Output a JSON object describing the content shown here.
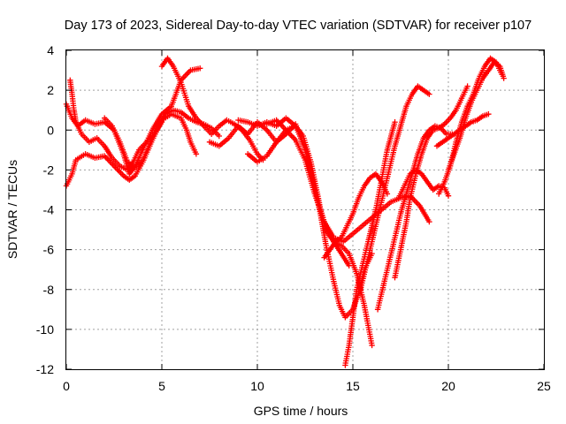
{
  "chart_data": {
    "type": "scatter",
    "title": "Day 173 of 2023, Sidereal Day-to-day VTEC variation (SDTVAR) for receiver p107",
    "xlabel": "GPS time / hours",
    "ylabel": "SDTVAR / TECUs",
    "xlim": [
      0,
      25
    ],
    "ylim": [
      -12,
      4
    ],
    "xticks": [
      "0",
      "5",
      "10",
      "15",
      "20",
      "25"
    ],
    "yticks": [
      "4",
      "2",
      "0",
      "-2",
      "-4",
      "-6",
      "-8",
      "-10",
      "-12"
    ],
    "grid": true,
    "marker": "+",
    "color": "#ff0000",
    "series": [
      {
        "x": [
          0.0,
          0.3,
          0.6,
          1.0,
          1.5,
          2.0,
          2.5,
          3.0,
          3.3,
          3.6,
          4.0,
          4.5,
          5.0,
          5.5,
          6.0,
          6.5,
          7.0
        ],
        "y": [
          1.3,
          0.6,
          0.2,
          0.5,
          0.3,
          0.4,
          0.0,
          -1.2,
          -2.2,
          -1.8,
          -1.0,
          0.0,
          0.8,
          1.2,
          2.5,
          3.0,
          3.1
        ]
      },
      {
        "x": [
          0.0,
          0.3,
          0.5,
          1.0,
          1.5,
          2.0,
          2.5,
          3.0,
          3.3,
          3.6,
          4.0,
          4.5,
          5.0,
          5.5,
          6.0,
          6.3,
          6.5,
          6.8
        ],
        "y": [
          -2.8,
          -2.2,
          -1.5,
          -1.2,
          -1.4,
          -1.3,
          -1.8,
          -2.3,
          -2.5,
          -2.3,
          -1.6,
          -0.5,
          0.5,
          0.8,
          0.6,
          0.0,
          -0.6,
          -1.2
        ]
      },
      {
        "x": [
          0.2,
          0.3,
          0.4,
          0.5,
          0.8,
          1.2,
          1.6,
          2.0,
          2.4,
          2.8,
          3.2,
          3.5,
          3.8,
          4.2,
          4.6,
          5.0
        ],
        "y": [
          2.5,
          1.8,
          1.0,
          0.4,
          -0.2,
          -0.6,
          -0.4,
          -0.8,
          -1.4,
          -1.8,
          -2.0,
          -1.6,
          -1.0,
          -0.6,
          -0.2,
          0.4
        ]
      },
      {
        "x": [
          2.0,
          2.4,
          2.8,
          3.2,
          3.6,
          4.0,
          4.4,
          4.8,
          5.2,
          5.6,
          6.0,
          6.4,
          6.8,
          7.2,
          7.6,
          8.0
        ],
        "y": [
          0.6,
          0.2,
          -0.6,
          -1.6,
          -1.9,
          -1.5,
          -0.6,
          0.2,
          0.8,
          1.0,
          0.9,
          0.6,
          0.4,
          0.3,
          0.1,
          -0.3
        ]
      },
      {
        "x": [
          5.0,
          5.3,
          5.6,
          6.0,
          6.4,
          6.8,
          7.2,
          7.6,
          8.0,
          8.4,
          8.8,
          9.2,
          9.6,
          10.0,
          10.3
        ],
        "y": [
          3.2,
          3.6,
          3.2,
          2.4,
          1.2,
          0.6,
          0.2,
          -0.2,
          0.2,
          0.5,
          0.3,
          0.0,
          -0.5,
          -1.2,
          -1.5
        ]
      },
      {
        "x": [
          7.5,
          8.0,
          8.5,
          9.0,
          9.5,
          10.0,
          10.5,
          11.0,
          11.5,
          12.0,
          12.5,
          13.0,
          13.5,
          14.0,
          14.4,
          14.8
        ],
        "y": [
          -0.6,
          -0.8,
          -0.4,
          0.2,
          -0.2,
          0.4,
          0.0,
          -0.6,
          -0.2,
          0.3,
          -1.0,
          -3.0,
          -4.6,
          -5.6,
          -6.2,
          -6.8
        ]
      },
      {
        "x": [
          9.0,
          9.5,
          10.0,
          10.5,
          11.0,
          11.5,
          12.0,
          12.3,
          12.6,
          13.0,
          13.3,
          13.6,
          14.0,
          14.3,
          14.6,
          15.0,
          15.3,
          15.6,
          16.0
        ],
        "y": [
          0.5,
          0.4,
          0.2,
          0.4,
          0.2,
          0.6,
          0.2,
          -0.4,
          -1.2,
          -2.8,
          -4.2,
          -5.8,
          -7.6,
          -8.8,
          -9.4,
          -9.0,
          -8.2,
          -7.0,
          -6.2
        ]
      },
      {
        "x": [
          9.5,
          10.0,
          10.5,
          11.0,
          11.5,
          12.0,
          12.4,
          12.8,
          13.1,
          13.4,
          13.7,
          14.0,
          14.4,
          14.8,
          15.2,
          15.6,
          16.0
        ],
        "y": [
          -1.2,
          -1.6,
          -1.3,
          -0.6,
          0.0,
          0.2,
          -0.3,
          -1.6,
          -3.0,
          -4.4,
          -5.2,
          -5.6,
          -5.8,
          -6.2,
          -7.2,
          -8.8,
          -10.8
        ]
      },
      {
        "x": [
          10.5,
          11.0,
          11.5,
          12.0,
          12.5,
          13.0,
          13.5,
          14.0,
          14.5,
          15.0,
          15.5,
          16.0,
          16.5,
          17.0,
          17.5,
          18.0,
          18.5,
          19.0
        ],
        "y": [
          0.3,
          0.5,
          0.0,
          -0.5,
          -1.5,
          -3.2,
          -4.6,
          -5.4,
          -5.6,
          -5.2,
          -4.8,
          -4.4,
          -4.0,
          -3.6,
          -3.4,
          -3.3,
          -3.8,
          -4.6
        ]
      },
      {
        "x": [
          13.5,
          13.8,
          14.1,
          14.4,
          14.7,
          15.0,
          15.3,
          15.6,
          15.9,
          16.2,
          16.5,
          16.8
        ],
        "y": [
          -6.4,
          -6.0,
          -5.6,
          -5.4,
          -4.8,
          -4.2,
          -3.4,
          -2.8,
          -2.4,
          -2.2,
          -2.6,
          -3.2
        ]
      },
      {
        "x": [
          14.6,
          14.8,
          15.0,
          15.2,
          15.5,
          15.8,
          16.0,
          16.2,
          16.4,
          16.6,
          16.8,
          17.0,
          17.2
        ],
        "y": [
          -11.8,
          -10.8,
          -9.4,
          -8.0,
          -6.8,
          -5.6,
          -4.8,
          -4.0,
          -3.0,
          -2.0,
          -1.0,
          -0.3,
          0.4
        ]
      },
      {
        "x": [
          15.4,
          15.7,
          16.0,
          16.3,
          16.6,
          16.9,
          17.2,
          17.5,
          17.8,
          18.1,
          18.4,
          18.7,
          19.0
        ],
        "y": [
          -8.0,
          -6.8,
          -5.6,
          -4.4,
          -3.2,
          -2.0,
          -0.8,
          0.2,
          1.2,
          1.8,
          2.2,
          2.0,
          1.8
        ]
      },
      {
        "x": [
          16.3,
          16.6,
          16.9,
          17.2,
          17.5,
          17.8,
          18.1,
          18.4,
          18.7,
          19.0,
          19.3,
          19.6,
          19.9,
          20.2
        ],
        "y": [
          -9.0,
          -7.8,
          -6.6,
          -5.4,
          -4.2,
          -3.2,
          -2.2,
          -1.2,
          -0.4,
          0.0,
          0.2,
          0.1,
          -0.2,
          -0.2
        ]
      },
      {
        "x": [
          17.2,
          17.5,
          17.8,
          18.0,
          18.3,
          18.6,
          18.9,
          19.2,
          19.5,
          19.8,
          20.1,
          20.4,
          20.7,
          21.0
        ],
        "y": [
          -7.4,
          -6.0,
          -4.6,
          -3.4,
          -2.2,
          -1.2,
          -0.4,
          0.0,
          0.1,
          0.3,
          0.6,
          1.0,
          1.6,
          2.2
        ]
      },
      {
        "x": [
          17.4,
          17.7,
          18.0,
          18.3,
          18.6,
          18.9,
          19.2,
          19.5,
          19.8,
          20.0
        ],
        "y": [
          -3.4,
          -2.8,
          -2.2,
          -2.0,
          -2.2,
          -2.6,
          -3.0,
          -2.8,
          -2.9,
          -3.3
        ]
      },
      {
        "x": [
          19.5,
          19.8,
          20.1,
          20.4,
          20.7,
          21.0,
          21.3,
          21.6,
          21.9,
          22.2,
          22.5,
          22.8
        ],
        "y": [
          -3.2,
          -2.6,
          -1.8,
          -0.6,
          0.4,
          1.2,
          1.8,
          2.6,
          3.2,
          3.6,
          3.4,
          2.8
        ]
      },
      {
        "x": [
          20.0,
          20.3,
          20.6,
          20.9,
          21.2,
          21.5,
          21.8,
          22.1,
          22.4,
          22.7,
          22.9
        ],
        "y": [
          -2.0,
          -1.2,
          -0.4,
          0.6,
          1.4,
          2.0,
          2.6,
          3.0,
          3.4,
          3.2,
          2.6
        ]
      },
      {
        "x": [
          19.4,
          19.7,
          20.0,
          20.3,
          20.6,
          20.9,
          21.2,
          21.5,
          21.8,
          22.1
        ],
        "y": [
          -0.8,
          -0.6,
          -0.4,
          -0.2,
          0.0,
          0.2,
          0.4,
          0.5,
          0.7,
          0.8
        ]
      }
    ]
  }
}
